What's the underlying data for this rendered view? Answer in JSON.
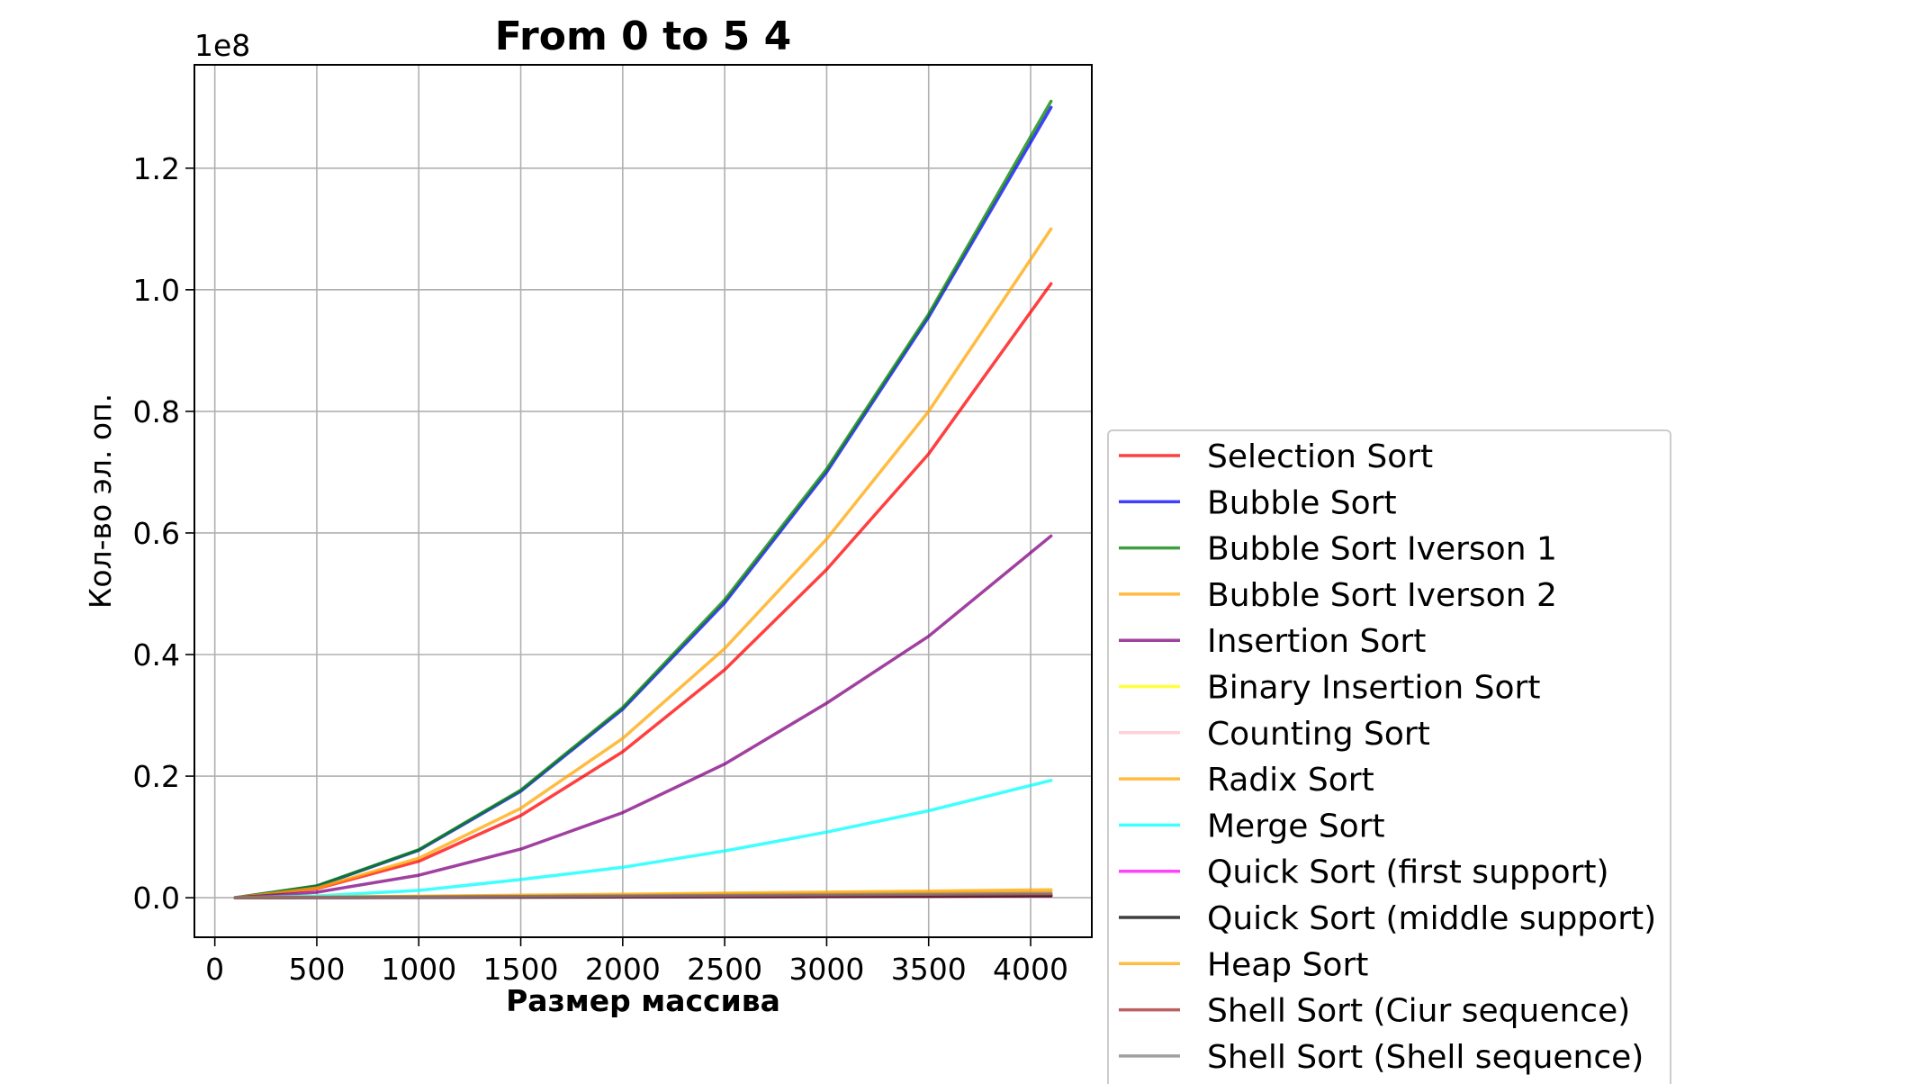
{
  "chart_data": {
    "type": "line",
    "title": "From 0 to 5 4",
    "xlabel": "Размер массива",
    "ylabel": "Кол-во эл. оп.",
    "offset_label": "1e8",
    "xlim": [
      -100,
      4300
    ],
    "ylim": [
      -0.065,
      1.37
    ],
    "x_ticks": [
      0,
      500,
      1000,
      1500,
      2000,
      2500,
      3000,
      3500,
      4000
    ],
    "y_ticks": [
      0.0,
      0.2,
      0.4,
      0.6,
      0.8,
      1.0,
      1.2
    ],
    "y_tick_labels": [
      "0.0",
      "0.2",
      "0.4",
      "0.6",
      "0.8",
      "1.0",
      "1.2"
    ],
    "grid": true,
    "legend_position": "lower-right outside",
    "x": [
      100,
      500,
      1000,
      1500,
      2000,
      2500,
      3000,
      3500,
      4100
    ],
    "series": [
      {
        "name": "Selection Sort",
        "color": "#ff0000",
        "values": [
          0.0,
          0.015,
          0.06,
          0.135,
          0.24,
          0.375,
          0.54,
          0.73,
          1.01
        ]
      },
      {
        "name": "Bubble Sort",
        "color": "#0000ff",
        "values": [
          0.0,
          0.019,
          0.078,
          0.175,
          0.31,
          0.485,
          0.7,
          0.955,
          1.3
        ]
      },
      {
        "name": "Bubble Sort Iverson 1",
        "color": "#008000",
        "values": [
          0.0,
          0.0195,
          0.079,
          0.177,
          0.313,
          0.49,
          0.705,
          0.96,
          1.31
        ]
      },
      {
        "name": "Bubble Sort Iverson 2",
        "color": "#ffa500",
        "values": [
          0.0,
          0.016,
          0.065,
          0.147,
          0.262,
          0.41,
          0.59,
          0.8,
          1.1
        ]
      },
      {
        "name": "Insertion Sort",
        "color": "#800080",
        "values": [
          0.0,
          0.009,
          0.037,
          0.08,
          0.14,
          0.22,
          0.32,
          0.43,
          0.595
        ]
      },
      {
        "name": "Binary Insertion Sort",
        "color": "#ffff00",
        "values": [
          0.0,
          0.0005,
          0.001,
          0.0015,
          0.002,
          0.0025,
          0.003,
          0.0035,
          0.004
        ]
      },
      {
        "name": "Counting Sort",
        "color": "#ffc0cb",
        "values": [
          0.0,
          0.0002,
          0.0004,
          0.0006,
          0.0008,
          0.001,
          0.0012,
          0.0014,
          0.0016
        ]
      },
      {
        "name": "Radix Sort",
        "color": "#ffa500",
        "values": [
          0.0,
          0.001,
          0.002,
          0.003,
          0.004,
          0.006,
          0.007,
          0.008,
          0.009
        ]
      },
      {
        "name": "Merge Sort",
        "color": "#00ffff",
        "values": [
          0.0,
          0.003,
          0.012,
          0.03,
          0.05,
          0.077,
          0.108,
          0.143,
          0.193
        ]
      },
      {
        "name": "Quick Sort (first support)",
        "color": "#ff00ff",
        "values": [
          0.0,
          0.0003,
          0.0007,
          0.0011,
          0.0015,
          0.002,
          0.0025,
          0.003,
          0.0036
        ]
      },
      {
        "name": "Quick Sort (middle support)",
        "color": "#000000",
        "values": [
          0.0,
          0.0002,
          0.0005,
          0.0009,
          0.0012,
          0.0016,
          0.002,
          0.0024,
          0.003
        ]
      },
      {
        "name": "Heap Sort",
        "color": "#ffa500",
        "values": [
          0.0,
          0.0012,
          0.0026,
          0.0042,
          0.0058,
          0.0075,
          0.0092,
          0.011,
          0.013
        ]
      },
      {
        "name": "Shell Sort (Ciur sequence)",
        "color": "#a52a2a",
        "values": [
          0.0,
          0.0004,
          0.001,
          0.0016,
          0.0022,
          0.0029,
          0.0036,
          0.0043,
          0.0052
        ]
      },
      {
        "name": "Shell Sort (Shell sequence)",
        "color": "#808080",
        "values": [
          0.0,
          0.0006,
          0.0013,
          0.0021,
          0.003,
          0.0039,
          0.0048,
          0.0058,
          0.007
        ]
      }
    ]
  }
}
